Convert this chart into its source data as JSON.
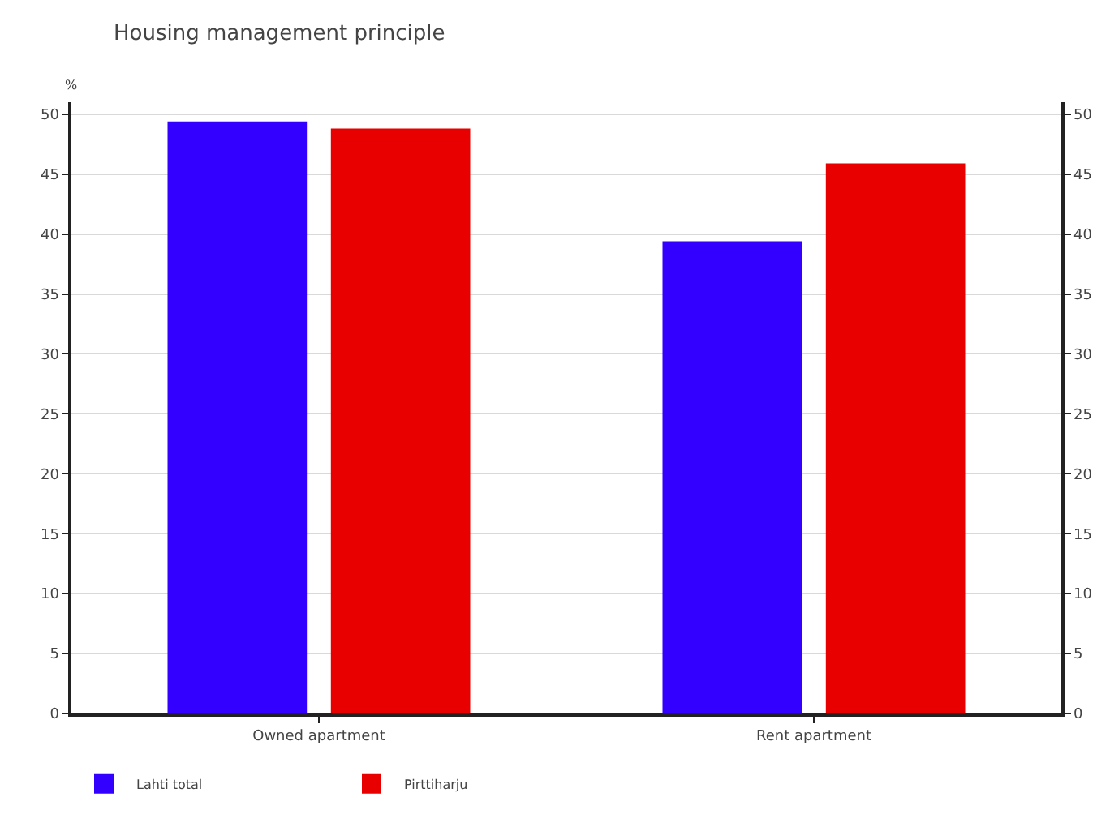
{
  "chart_data": {
    "type": "bar",
    "title": "Housing management principle",
    "ylabel": "%",
    "categories": [
      "Owned apartment",
      "Rent apartment"
    ],
    "series": [
      {
        "name": "Lahti total",
        "color": "#3300ff",
        "values": [
          49.4,
          39.4
        ]
      },
      {
        "name": "Pirttiharju",
        "color": "#e80000",
        "values": [
          48.8,
          45.9
        ]
      }
    ],
    "ylim": [
      0,
      51
    ],
    "yticks": [
      0,
      5,
      10,
      15,
      20,
      25,
      30,
      35,
      40,
      45,
      50
    ],
    "y2lim": [
      0,
      51
    ],
    "y2ticks": [
      0,
      5,
      10,
      15,
      20,
      25,
      30,
      35,
      40,
      45,
      50
    ],
    "grid": "y",
    "legend": "bottom left"
  }
}
